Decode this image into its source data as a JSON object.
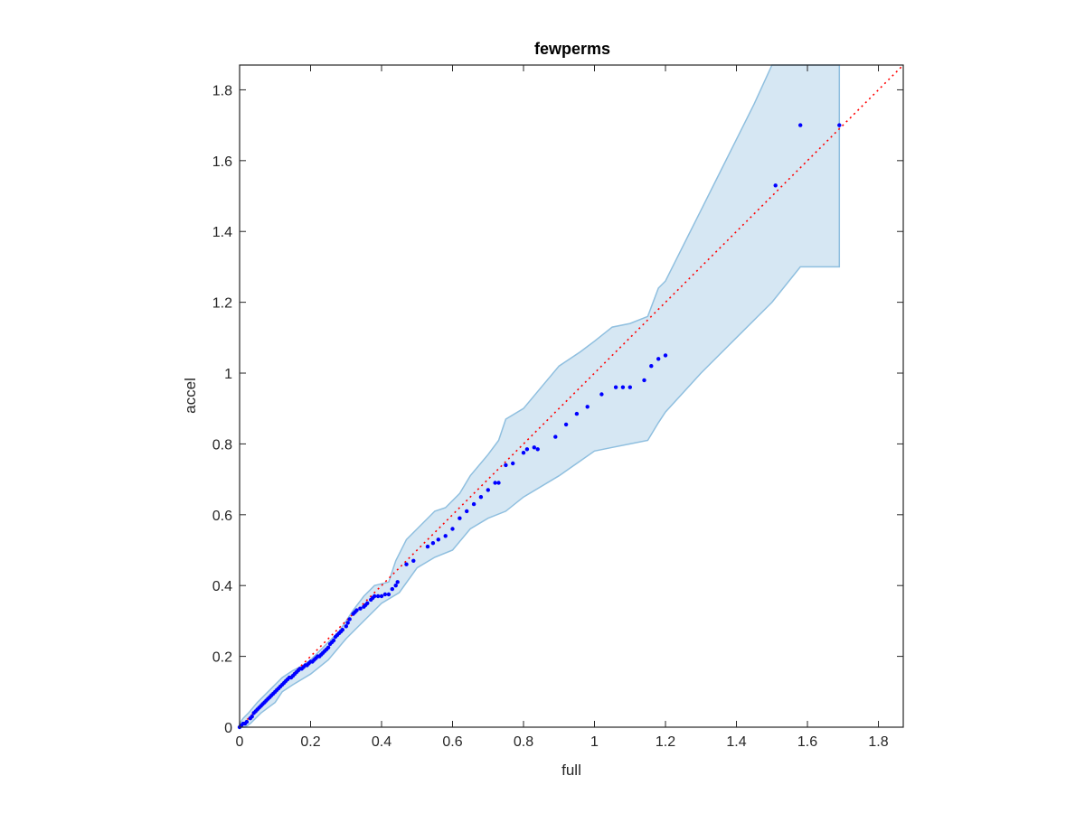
{
  "chart_data": {
    "type": "scatter",
    "title": "fewperms",
    "xlabel": "full",
    "ylabel": "accel",
    "xlim": [
      0,
      1.87
    ],
    "ylim": [
      0,
      1.87
    ],
    "xticks": [
      0,
      0.2,
      0.4,
      0.6,
      0.8,
      1,
      1.2,
      1.4,
      1.6,
      1.8
    ],
    "yticks": [
      0,
      0.2,
      0.4,
      0.6,
      0.8,
      1,
      1.2,
      1.4,
      1.6,
      1.8
    ],
    "xtick_labels": [
      "0",
      "0.2",
      "0.4",
      "0.6",
      "0.8",
      "1",
      "1.2",
      "1.4",
      "1.6",
      "1.8"
    ],
    "ytick_labels": [
      "0",
      "0.2",
      "0.4",
      "0.6",
      "0.8",
      "1",
      "1.2",
      "1.4",
      "1.6",
      "1.8"
    ],
    "grid": false,
    "colors": {
      "points": "#0000ff",
      "reference_line": "#ff0000",
      "band_fill": "#d6e7f3",
      "band_edge": "#8fbfdf",
      "axes": "#262626"
    },
    "reference_line": {
      "style": "dotted",
      "from": [
        0,
        0
      ],
      "to": [
        1.87,
        1.87
      ]
    },
    "band": {
      "upper": [
        [
          0,
          0.01
        ],
        [
          0.01,
          0.025
        ],
        [
          0.025,
          0.04
        ],
        [
          0.05,
          0.07
        ],
        [
          0.08,
          0.1
        ],
        [
          0.12,
          0.14
        ],
        [
          0.15,
          0.16
        ],
        [
          0.18,
          0.175
        ],
        [
          0.2,
          0.19
        ],
        [
          0.22,
          0.21
        ],
        [
          0.25,
          0.24
        ],
        [
          0.28,
          0.27
        ],
        [
          0.3,
          0.3
        ],
        [
          0.32,
          0.33
        ],
        [
          0.35,
          0.37
        ],
        [
          0.38,
          0.4
        ],
        [
          0.42,
          0.41
        ],
        [
          0.44,
          0.47
        ],
        [
          0.47,
          0.53
        ],
        [
          0.5,
          0.56
        ],
        [
          0.55,
          0.61
        ],
        [
          0.58,
          0.62
        ],
        [
          0.62,
          0.66
        ],
        [
          0.65,
          0.71
        ],
        [
          0.7,
          0.77
        ],
        [
          0.73,
          0.81
        ],
        [
          0.75,
          0.87
        ],
        [
          0.8,
          0.9
        ],
        [
          0.85,
          0.96
        ],
        [
          0.9,
          1.02
        ],
        [
          0.96,
          1.06
        ],
        [
          1.0,
          1.09
        ],
        [
          1.05,
          1.13
        ],
        [
          1.1,
          1.14
        ],
        [
          1.15,
          1.16
        ],
        [
          1.18,
          1.24
        ],
        [
          1.2,
          1.26
        ],
        [
          1.25,
          1.36
        ],
        [
          1.3,
          1.46
        ],
        [
          1.35,
          1.56
        ],
        [
          1.4,
          1.66
        ],
        [
          1.45,
          1.76
        ],
        [
          1.5,
          1.87
        ],
        [
          1.69,
          1.87
        ]
      ],
      "lower": [
        [
          1.69,
          1.3
        ],
        [
          1.58,
          1.3
        ],
        [
          1.5,
          1.2
        ],
        [
          1.4,
          1.1
        ],
        [
          1.3,
          1.0
        ],
        [
          1.2,
          0.89
        ],
        [
          1.18,
          0.86
        ],
        [
          1.15,
          0.81
        ],
        [
          1.1,
          0.8
        ],
        [
          1.05,
          0.79
        ],
        [
          1.0,
          0.78
        ],
        [
          0.9,
          0.71
        ],
        [
          0.8,
          0.65
        ],
        [
          0.75,
          0.61
        ],
        [
          0.7,
          0.59
        ],
        [
          0.65,
          0.56
        ],
        [
          0.6,
          0.5
        ],
        [
          0.55,
          0.48
        ],
        [
          0.5,
          0.45
        ],
        [
          0.45,
          0.38
        ],
        [
          0.4,
          0.35
        ],
        [
          0.35,
          0.3
        ],
        [
          0.3,
          0.25
        ],
        [
          0.25,
          0.19
        ],
        [
          0.2,
          0.15
        ],
        [
          0.15,
          0.12
        ],
        [
          0.12,
          0.1
        ],
        [
          0.1,
          0.07
        ],
        [
          0.06,
          0.04
        ],
        [
          0.03,
          0.01
        ],
        [
          0.015,
          0.0
        ],
        [
          0,
          0.0
        ]
      ]
    },
    "points": {
      "x": [
        0.0,
        0.005,
        0.01,
        0.015,
        0.02,
        0.03,
        0.035,
        0.04,
        0.045,
        0.05,
        0.055,
        0.06,
        0.065,
        0.07,
        0.075,
        0.08,
        0.085,
        0.09,
        0.095,
        0.1,
        0.105,
        0.11,
        0.115,
        0.12,
        0.125,
        0.13,
        0.135,
        0.14,
        0.145,
        0.15,
        0.155,
        0.16,
        0.165,
        0.17,
        0.175,
        0.18,
        0.185,
        0.19,
        0.195,
        0.2,
        0.205,
        0.21,
        0.215,
        0.22,
        0.225,
        0.23,
        0.235,
        0.24,
        0.245,
        0.25,
        0.255,
        0.26,
        0.265,
        0.27,
        0.275,
        0.28,
        0.285,
        0.29,
        0.3,
        0.305,
        0.31,
        0.32,
        0.325,
        0.33,
        0.34,
        0.35,
        0.355,
        0.36,
        0.37,
        0.375,
        0.38,
        0.39,
        0.4,
        0.41,
        0.42,
        0.43,
        0.44,
        0.445,
        0.47,
        0.49,
        0.53,
        0.545,
        0.56,
        0.58,
        0.6,
        0.62,
        0.64,
        0.66,
        0.68,
        0.7,
        0.72,
        0.73,
        0.75,
        0.77,
        0.8,
        0.81,
        0.83,
        0.84,
        0.89,
        0.92,
        0.95,
        0.98,
        1.02,
        1.06,
        1.08,
        1.1,
        1.14,
        1.16,
        1.18,
        1.2,
        1.51,
        1.58,
        1.69
      ],
      "y": [
        0.0,
        0.005,
        0.01,
        0.01,
        0.015,
        0.025,
        0.03,
        0.04,
        0.045,
        0.05,
        0.055,
        0.06,
        0.065,
        0.07,
        0.075,
        0.08,
        0.085,
        0.09,
        0.095,
        0.1,
        0.105,
        0.11,
        0.115,
        0.12,
        0.125,
        0.13,
        0.135,
        0.14,
        0.14,
        0.145,
        0.15,
        0.155,
        0.16,
        0.165,
        0.165,
        0.17,
        0.175,
        0.175,
        0.18,
        0.185,
        0.185,
        0.19,
        0.195,
        0.2,
        0.2,
        0.205,
        0.21,
        0.215,
        0.22,
        0.225,
        0.235,
        0.24,
        0.245,
        0.255,
        0.26,
        0.265,
        0.27,
        0.275,
        0.285,
        0.295,
        0.305,
        0.32,
        0.325,
        0.33,
        0.335,
        0.34,
        0.345,
        0.35,
        0.36,
        0.365,
        0.37,
        0.37,
        0.37,
        0.375,
        0.375,
        0.39,
        0.4,
        0.41,
        0.46,
        0.47,
        0.51,
        0.52,
        0.53,
        0.54,
        0.56,
        0.59,
        0.61,
        0.63,
        0.65,
        0.67,
        0.69,
        0.69,
        0.74,
        0.745,
        0.775,
        0.785,
        0.79,
        0.785,
        0.82,
        0.855,
        0.885,
        0.905,
        0.94,
        0.96,
        0.96,
        0.96,
        0.98,
        1.02,
        1.04,
        1.05,
        1.53,
        1.7,
        1.7
      ]
    }
  }
}
